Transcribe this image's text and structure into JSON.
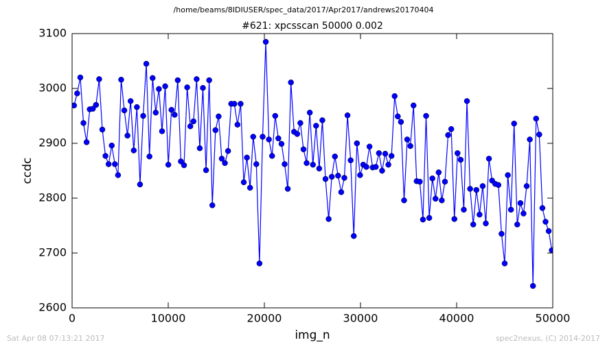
{
  "chart_data": {
    "type": "line",
    "suptitle": "/home/beams/8IDIUSER/spec_data/2017/Apr2017/andrews20170404",
    "title": "#621: xpcsscan 50000 0.002",
    "x_label": "img_n",
    "y_label": "ccdc",
    "footer_left": "Sat Apr 08 07:13:21 2017",
    "footer_right": "spec2nexus, (C) 2014-2017",
    "x": [
      200,
      527,
      854,
      1181,
      1508,
      1835,
      2162,
      2489,
      2816,
      3143,
      3470,
      3797,
      4124,
      4451,
      4778,
      5105,
      5432,
      5759,
      6086,
      6413,
      6740,
      7067,
      7394,
      7721,
      8048,
      8375,
      8702,
      9029,
      9356,
      9683,
      10010,
      10337,
      10664,
      10991,
      11318,
      11645,
      11972,
      12299,
      12626,
      12953,
      13280,
      13607,
      13934,
      14261,
      14588,
      14915,
      15242,
      15569,
      15896,
      16223,
      16550,
      16877,
      17204,
      17531,
      17858,
      18185,
      18512,
      18839,
      19166,
      19493,
      19820,
      20147,
      20474,
      20801,
      21128,
      21455,
      21782,
      22109,
      22436,
      22763,
      23090,
      23417,
      23744,
      24071,
      24398,
      24725,
      25052,
      25379,
      25706,
      26033,
      26360,
      26687,
      27014,
      27341,
      27668,
      27995,
      28322,
      28649,
      28976,
      29303,
      29630,
      29957,
      30284,
      30611,
      30938,
      31265,
      31592,
      31919,
      32246,
      32573,
      32900,
      33227,
      33554,
      33881,
      34208,
      34535,
      34862,
      35189,
      35516,
      35843,
      36170,
      36497,
      36824,
      37151,
      37478,
      37805,
      38132,
      38459,
      38786,
      39113,
      39440,
      39767,
      40094,
      40421,
      40748,
      41075,
      41402,
      41729,
      42056,
      42383,
      42710,
      43037,
      43364,
      43691,
      44018,
      44345,
      44672,
      44999,
      45326,
      45653,
      45980,
      46307,
      46634,
      46961,
      47288,
      47615,
      47942,
      48269,
      48596,
      48923,
      49250,
      49577,
      49904
    ],
    "series": [
      {
        "color": "#0000ff",
        "values": [
          2969,
          2991,
          3020,
          2937,
          2902,
          2962,
          2963,
          2970,
          3017,
          2925,
          2877,
          2862,
          2896,
          2862,
          2842,
          3016,
          2960,
          2914,
          2977,
          2887,
          2966,
          2825,
          2950,
          3045,
          2876,
          3019,
          2956,
          2999,
          2922,
          3004,
          2861,
          2961,
          2952,
          3015,
          2867,
          2860,
          3002,
          2931,
          2940,
          3017,
          2891,
          3001,
          2851,
          3015,
          2787,
          2924,
          2949,
          2872,
          2864,
          2886,
          2972,
          2972,
          2934,
          2972,
          2829,
          2874,
          2819,
          2912,
          2862,
          2681,
          2912,
          3085,
          2907,
          2877,
          2950,
          2909,
          2899,
          2862,
          2817,
          3011,
          2921,
          2917,
          2937,
          2889,
          2864,
          2956,
          2861,
          2932,
          2854,
          2942,
          2835,
          2762,
          2839,
          2876,
          2841,
          2811,
          2837,
          2951,
          2869,
          2731,
          2900,
          2842,
          2861,
          2857,
          2894,
          2856,
          2857,
          2882,
          2850,
          2881,
          2861,
          2877,
          2986,
          2949,
          2939,
          2796,
          2907,
          2895,
          2969,
          2831,
          2830,
          2761,
          2950,
          2764,
          2836,
          2799,
          2847,
          2796,
          2830,
          2915,
          2926,
          2762,
          2882,
          2870,
          2779,
          2977,
          2817,
          2752,
          2815,
          2770,
          2822,
          2754,
          2872,
          2832,
          2826,
          2824,
          2735,
          2681,
          2842,
          2779,
          2936,
          2752,
          2791,
          2772,
          2822,
          2907,
          2640,
          2945,
          2916,
          2782,
          2757,
          2740,
          2705
        ]
      }
    ],
    "xlim": [
      0,
      50000
    ],
    "xticks": [
      0,
      10000,
      20000,
      30000,
      40000,
      50000
    ],
    "ylim": [
      2600,
      3100
    ],
    "yticks": [
      2600,
      2700,
      2800,
      2900,
      3000,
      3100
    ],
    "grid": false
  }
}
